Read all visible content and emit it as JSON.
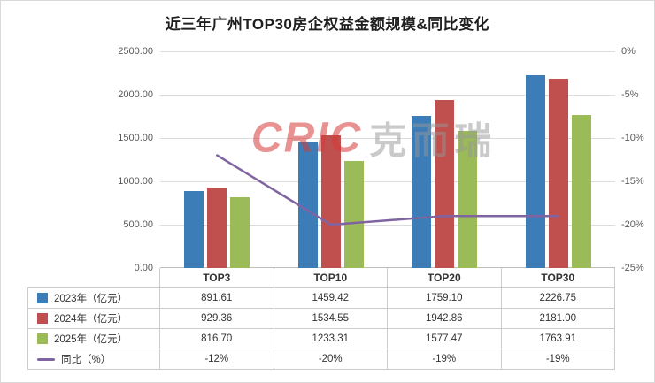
{
  "watermark": {
    "logo_text": "CRIC",
    "cn_text": "克而瑞"
  },
  "colors": {
    "bar_2023": "#3C7DB8",
    "bar_2024": "#C0504D",
    "bar_2025": "#9BBB59",
    "line_yoy": "#8064A2",
    "grid": "#DCDCDC"
  },
  "chart_data": {
    "type": "bar",
    "title": "近三年广州TOP30房企权益金额规模&同比变化",
    "categories": [
      "TOP3",
      "TOP10",
      "TOP20",
      "TOP30"
    ],
    "series": [
      {
        "name": "2023年（亿元）",
        "kind": "bar",
        "color": "#3C7DB8",
        "values": [
          891.61,
          1459.42,
          1759.1,
          2226.75
        ],
        "display": [
          "891.61",
          "1459.42",
          "1759.10",
          "2226.75"
        ]
      },
      {
        "name": "2024年（亿元）",
        "kind": "bar",
        "color": "#C0504D",
        "values": [
          929.36,
          1534.55,
          1942.86,
          2181.0
        ],
        "display": [
          "929.36",
          "1534.55",
          "1942.86",
          "2181.00"
        ]
      },
      {
        "name": "2025年（亿元）",
        "kind": "bar",
        "color": "#9BBB59",
        "values": [
          816.7,
          1233.31,
          1577.47,
          1763.91
        ],
        "display": [
          "816.70",
          "1233.31",
          "1577.47",
          "1763.91"
        ]
      },
      {
        "name": "同比（%）",
        "kind": "line",
        "color": "#8064A2",
        "values": [
          -12,
          -20,
          -19,
          -19
        ],
        "display": [
          "-12%",
          "-20%",
          "-19%",
          "-19%"
        ]
      }
    ],
    "left_axis_max": 2500,
    "left_axis_ticks": [
      "2500.00",
      "2000.00",
      "1500.00",
      "1000.00",
      "500.00",
      "0.00"
    ],
    "right_axis_min": -25,
    "right_axis_ticks": [
      "0%",
      "-5%",
      "-10%",
      "-15%",
      "-20%",
      "-25%"
    ],
    "grid": true,
    "legend_position": "table-left"
  }
}
